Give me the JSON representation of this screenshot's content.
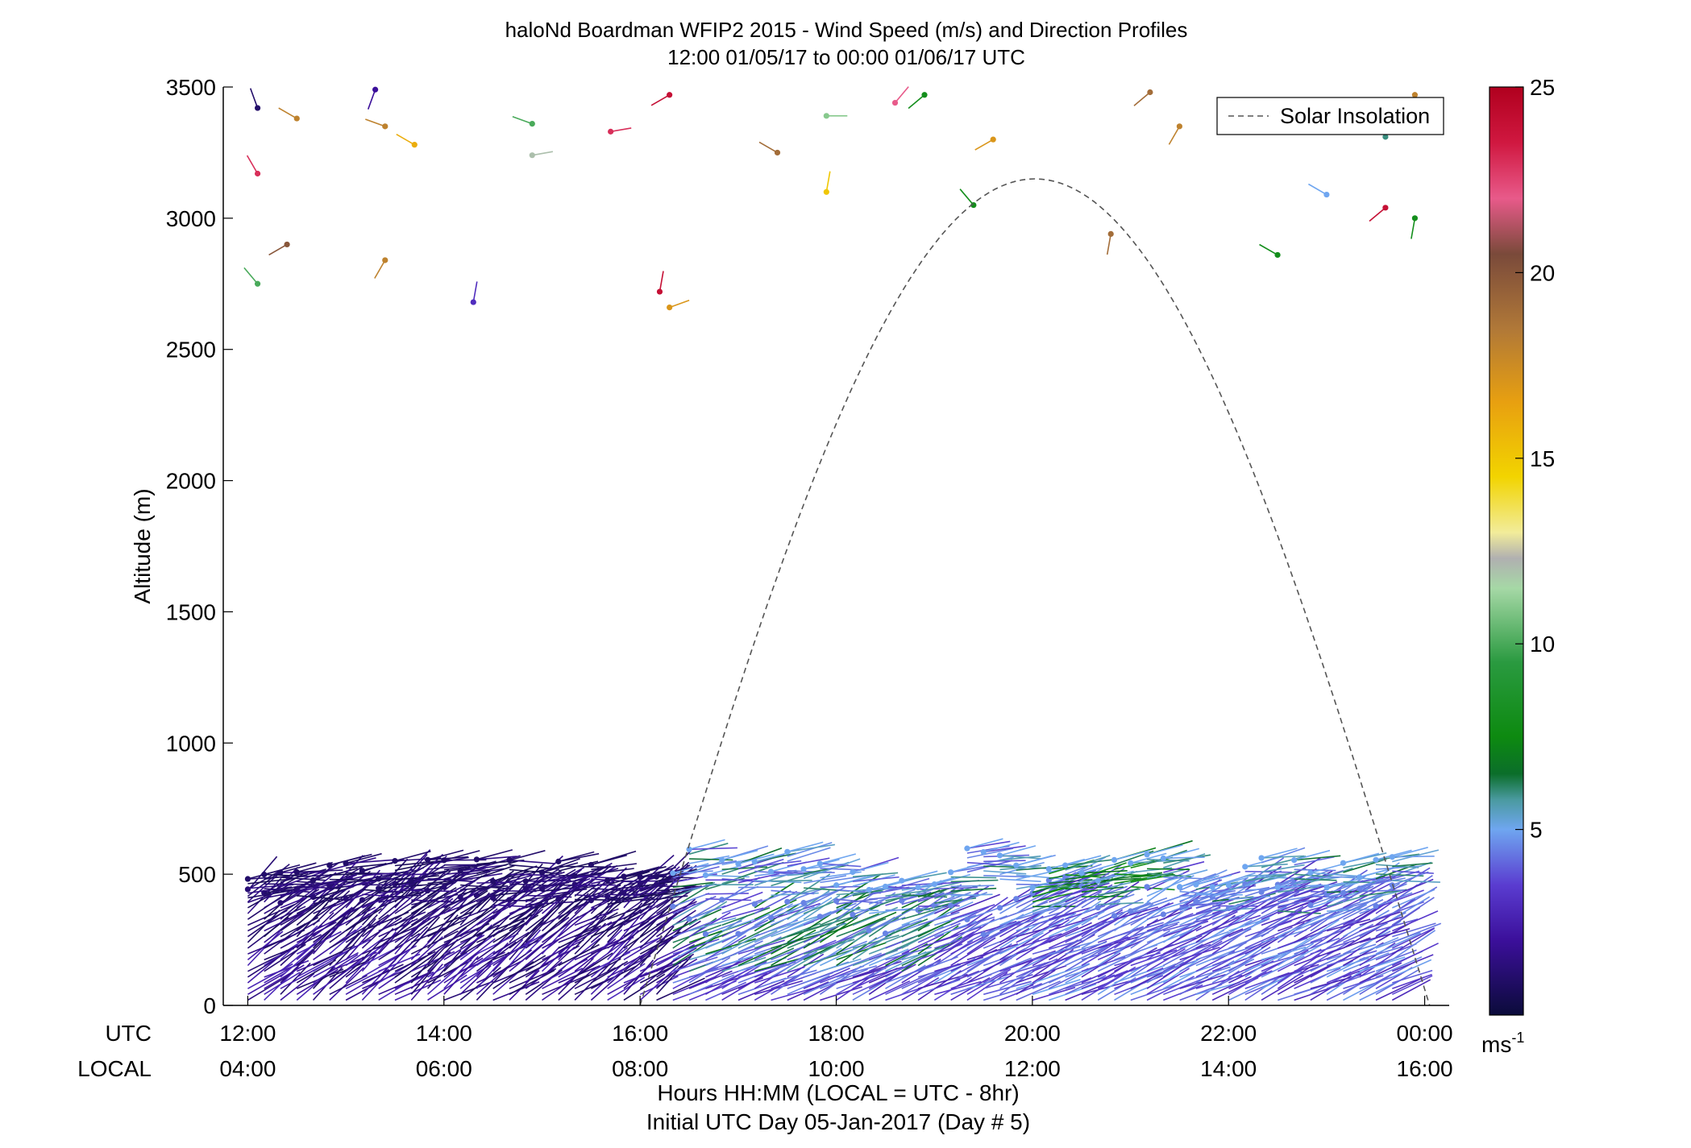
{
  "chart_data": {
    "type": "wind-barb-profile",
    "title": "haloNd Boardman WFIP2 2015 - Wind Speed (m/s) and Direction Profiles",
    "subtitle": "12:00 01/05/17 to 00:00 01/06/17  UTC",
    "ylabel": "Altitude (m)",
    "ylim": [
      0,
      3500
    ],
    "yticks": [
      0,
      500,
      1000,
      1500,
      2000,
      2500,
      3000,
      3500
    ],
    "ytick_labels": [
      "0",
      "500",
      "1000",
      "1500",
      "2000",
      "2500",
      "3000",
      "3500"
    ],
    "xlim_hours": [
      11.75,
      24.25
    ],
    "xticks_hours": [
      12,
      14,
      16,
      18,
      20,
      22,
      24
    ],
    "utc_row_label": "UTC",
    "local_row_label": "LOCAL",
    "utc_tick_labels": [
      "12:00",
      "14:00",
      "16:00",
      "18:00",
      "20:00",
      "22:00",
      "00:00"
    ],
    "local_tick_labels": [
      "04:00",
      "06:00",
      "08:00",
      "10:00",
      "12:00",
      "14:00",
      "16:00"
    ],
    "xlabel": "Hours HH:MM  (LOCAL = UTC - 8hr)",
    "xlabel2": "Initial UTC Day 05-Jan-2017 (Day # 5)",
    "legend": {
      "label": "Solar Insolation",
      "position": "top-right",
      "style": "dashed gray line"
    },
    "colorbar": {
      "min": 0,
      "max": 25,
      "ticks": [
        5,
        10,
        15,
        20,
        25
      ],
      "tick_labels": [
        "5",
        "10",
        "15",
        "20",
        "25"
      ],
      "unit_label": "ms",
      "unit_exponent": "-1",
      "stops": [
        {
          "v": 0,
          "c": "#0b0b3a"
        },
        {
          "v": 2,
          "c": "#3b0f9a"
        },
        {
          "v": 3.5,
          "c": "#5a3cd0"
        },
        {
          "v": 5,
          "c": "#6fa6f0"
        },
        {
          "v": 5.8,
          "c": "#4a9aa0"
        },
        {
          "v": 6.5,
          "c": "#0b6e2a"
        },
        {
          "v": 7.5,
          "c": "#0d8a10"
        },
        {
          "v": 9.5,
          "c": "#2a9a40"
        },
        {
          "v": 11.5,
          "c": "#a6d8a6"
        },
        {
          "v": 12.3,
          "c": "#b0b0b0"
        },
        {
          "v": 13,
          "c": "#f2ec9a"
        },
        {
          "v": 14.5,
          "c": "#f2d400"
        },
        {
          "v": 16.5,
          "c": "#e8a010"
        },
        {
          "v": 18.5,
          "c": "#b07838"
        },
        {
          "v": 20.5,
          "c": "#7a4a3a"
        },
        {
          "v": 22,
          "c": "#e85a8a"
        },
        {
          "v": 23.5,
          "c": "#d01840"
        },
        {
          "v": 25,
          "c": "#b0001e"
        }
      ]
    },
    "solar_insolation": {
      "start_hour": 16.0,
      "end_hour": 24.05,
      "peak_hour": 19.95,
      "peak_altitude": 3150
    },
    "profile_start_hour": 12.0,
    "profile_end_hour": 23.83,
    "profile_interval_hours": 0.1667,
    "series": [
      {
        "name": "upper-level isolated barbs",
        "points": [
          {
            "t": 12.1,
            "alt": 3420,
            "dir": 340,
            "spd": 1.0
          },
          {
            "t": 12.5,
            "alt": 3380,
            "dir": 300,
            "spd": 18.0
          },
          {
            "t": 13.3,
            "alt": 3490,
            "dir": 200,
            "spd": 2.0
          },
          {
            "t": 13.4,
            "alt": 3350,
            "dir": 290,
            "spd": 18.0
          },
          {
            "t": 13.7,
            "alt": 3280,
            "dir": 300,
            "spd": 16.0
          },
          {
            "t": 12.1,
            "alt": 3170,
            "dir": 330,
            "spd": 23.0
          },
          {
            "t": 12.4,
            "alt": 2900,
            "dir": 240,
            "spd": 20.0
          },
          {
            "t": 13.4,
            "alt": 2840,
            "dir": 210,
            "spd": 18.0
          },
          {
            "t": 12.1,
            "alt": 2750,
            "dir": 320,
            "spd": 10.0
          },
          {
            "t": 14.3,
            "alt": 2680,
            "dir": 10,
            "spd": 3.0
          },
          {
            "t": 14.9,
            "alt": 3360,
            "dir": 290,
            "spd": 10.0
          },
          {
            "t": 14.9,
            "alt": 3240,
            "dir": 80,
            "spd": 12.0
          },
          {
            "t": 15.7,
            "alt": 3330,
            "dir": 80,
            "spd": 23.0
          },
          {
            "t": 16.3,
            "alt": 3470,
            "dir": 240,
            "spd": 24.0
          },
          {
            "t": 16.2,
            "alt": 2720,
            "dir": 10,
            "spd": 24.0
          },
          {
            "t": 16.3,
            "alt": 2660,
            "dir": 70,
            "spd": 17.0
          },
          {
            "t": 17.4,
            "alt": 3250,
            "dir": 300,
            "spd": 19.0
          },
          {
            "t": 17.9,
            "alt": 3390,
            "dir": 90,
            "spd": 11.0
          },
          {
            "t": 17.9,
            "alt": 3100,
            "dir": 10,
            "spd": 15.0
          },
          {
            "t": 18.6,
            "alt": 3440,
            "dir": 40,
            "spd": 22.0
          },
          {
            "t": 18.9,
            "alt": 3470,
            "dir": 230,
            "spd": 8.0
          },
          {
            "t": 19.4,
            "alt": 3050,
            "dir": 320,
            "spd": 8.0
          },
          {
            "t": 19.6,
            "alt": 3300,
            "dir": 240,
            "spd": 17.0
          },
          {
            "t": 20.8,
            "alt": 2940,
            "dir": 190,
            "spd": 19.0
          },
          {
            "t": 21.2,
            "alt": 3480,
            "dir": 230,
            "spd": 19.0
          },
          {
            "t": 21.5,
            "alt": 3350,
            "dir": 210,
            "spd": 18.0
          },
          {
            "t": 22.5,
            "alt": 2860,
            "dir": 300,
            "spd": 8.0
          },
          {
            "t": 23.0,
            "alt": 3090,
            "dir": 300,
            "spd": 5.0
          },
          {
            "t": 23.6,
            "alt": 3310,
            "dir": 20,
            "spd": 6.0
          },
          {
            "t": 23.6,
            "alt": 3040,
            "dir": 230,
            "spd": 24.0
          },
          {
            "t": 23.9,
            "alt": 3000,
            "dir": 190,
            "spd": 8.0
          },
          {
            "t": 23.9,
            "alt": 3470,
            "dir": 200,
            "spd": 18.0
          }
        ]
      }
    ]
  }
}
